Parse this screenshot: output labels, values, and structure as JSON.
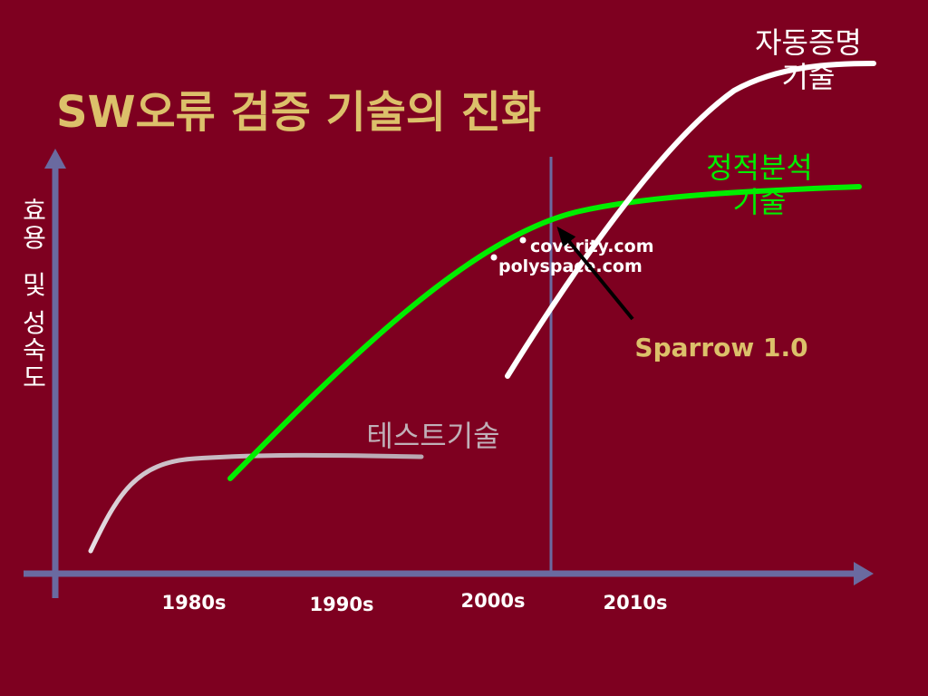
{
  "title": "SW오류 검증 기술의 진화",
  "y_axis_label": [
    "효",
    "용",
    "및",
    "성",
    "숙",
    "도"
  ],
  "x_ticks": [
    "1980s",
    "1990s",
    "2000s",
    "2010s"
  ],
  "curves": {
    "testing": {
      "label": "테스트기술",
      "color": "#c0b0b8"
    },
    "static_analysis": {
      "label_lines": [
        "정적분석",
        "기술"
      ],
      "color": "#00ee00"
    },
    "auto_proof": {
      "label_lines": [
        "자동증명",
        "기술"
      ],
      "color": "#ffffff"
    }
  },
  "annotations": {
    "coverity": "coverity.com",
    "polyspace": "polyspace.com",
    "sparrow": "Sparrow 1.0"
  },
  "colors": {
    "background": "#7e0020",
    "title": "#dcc06a",
    "axis": "#6a6aa0"
  }
}
